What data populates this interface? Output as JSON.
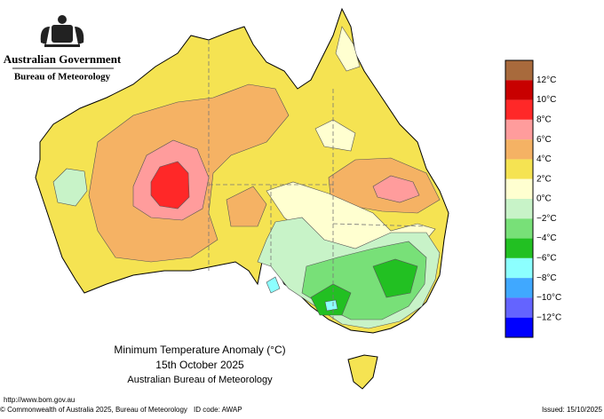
{
  "header": {
    "government": "Australian Government",
    "agency": "Bureau of Meteorology"
  },
  "legend": {
    "labels": [
      "12°C",
      "10°C",
      "8°C",
      "6°C",
      "4°C",
      "2°C",
      "0°C",
      "−2°C",
      "−4°C",
      "−6°C",
      "−8°C",
      "−10°C",
      "−12°C"
    ],
    "colors": [
      "#a86a3c",
      "#c80000",
      "#ff2828",
      "#ff9c9c",
      "#f5b264",
      "#f5e352",
      "#ffffd0",
      "#c8f3c8",
      "#78e078",
      "#22c022",
      "#8cffff",
      "#40a8ff",
      "#6464ff",
      "#0000ff"
    ]
  },
  "title": {
    "line1": "Minimum Temperature Anomaly (°C)",
    "line2": "15th October 2025",
    "line3": "Australian Bureau of Meteorology"
  },
  "footer": {
    "url": "http://www.bom.gov.au",
    "copyright": "© Commonwealth of Australia 2025, Bureau of Meteorology",
    "id_code": "ID code: AWAP",
    "issued": "Issued: 15/10/2025"
  }
}
